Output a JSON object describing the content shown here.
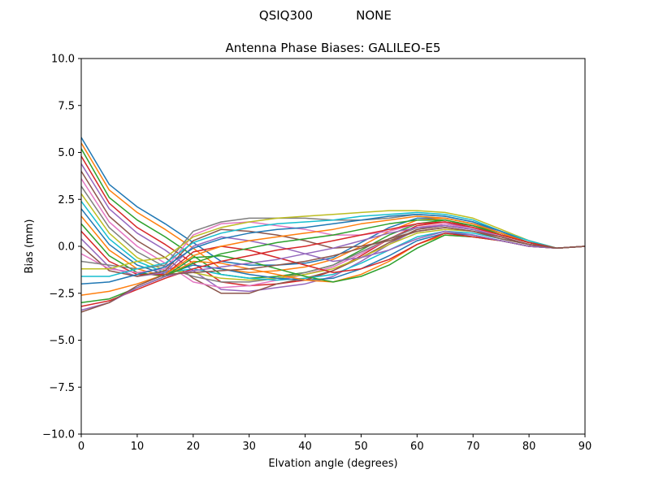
{
  "figure": {
    "suptitle_left": "QSIQ300",
    "suptitle_right": "NONE"
  },
  "chart_data": {
    "type": "line",
    "title": "Antenna Phase Biases: GALILEO-E5",
    "xlabel": "Elvation angle (degrees)",
    "ylabel": "Bias (mm)",
    "xlim": [
      0,
      90
    ],
    "ylim": [
      -10,
      10
    ],
    "xticks": [
      0,
      10,
      20,
      30,
      40,
      50,
      60,
      70,
      80,
      90
    ],
    "yticks": [
      -10.0,
      -7.5,
      -5.0,
      -2.5,
      0.0,
      2.5,
      5.0,
      7.5,
      10.0
    ],
    "xtick_labels": [
      "0",
      "10",
      "20",
      "30",
      "40",
      "50",
      "60",
      "70",
      "80",
      "90"
    ],
    "ytick_labels": [
      "−10.0",
      "−7.5",
      "−5.0",
      "−2.5",
      "0.0",
      "2.5",
      "5.0",
      "7.5",
      "10.0"
    ],
    "grid": false,
    "legend": "none",
    "colors": [
      "#1f77b4",
      "#ff7f0e",
      "#2ca02c",
      "#d62728",
      "#9467bd",
      "#8c564b",
      "#e377c2",
      "#7f7f7f",
      "#bcbd22",
      "#17becf"
    ],
    "x": [
      0,
      5,
      10,
      15,
      20,
      25,
      30,
      35,
      40,
      45,
      50,
      55,
      60,
      65,
      70,
      75,
      80,
      85,
      90
    ],
    "series": [
      {
        "values": [
          5.8,
          3.3,
          2.1,
          1.2,
          0.2,
          -0.8,
          -1.0,
          -1.0,
          -0.9,
          -0.6,
          0.2,
          1.0,
          1.5,
          1.5,
          1.2,
          0.7,
          0.2,
          -0.1,
          0.0
        ]
      },
      {
        "values": [
          5.5,
          3.0,
          1.8,
          0.9,
          -0.1,
          -1.2,
          -1.4,
          -1.3,
          -1.1,
          -0.7,
          0.0,
          0.8,
          1.4,
          1.5,
          1.2,
          0.7,
          0.2,
          -0.1,
          0.0
        ]
      },
      {
        "values": [
          5.2,
          2.6,
          1.4,
          0.5,
          -0.5,
          -1.5,
          -1.7,
          -1.6,
          -1.4,
          -1.0,
          -0.2,
          0.6,
          1.2,
          1.4,
          1.1,
          0.7,
          0.2,
          -0.1,
          0.0
        ]
      },
      {
        "values": [
          4.8,
          2.3,
          1.0,
          0.1,
          -0.9,
          -1.9,
          -2.1,
          -2.0,
          -1.8,
          -1.3,
          -0.5,
          0.4,
          1.1,
          1.3,
          1.1,
          0.6,
          0.2,
          -0.1,
          0.0
        ]
      },
      {
        "values": [
          4.4,
          2.0,
          0.7,
          -0.2,
          -1.3,
          -2.3,
          -2.4,
          -2.2,
          -2.0,
          -1.6,
          -0.8,
          0.1,
          0.9,
          1.2,
          1.0,
          0.6,
          0.2,
          -0.1,
          0.0
        ]
      },
      {
        "values": [
          4.0,
          1.6,
          0.3,
          -0.6,
          -1.7,
          -2.5,
          -2.5,
          -2.0,
          -1.7,
          -1.3,
          -0.6,
          0.2,
          0.9,
          1.1,
          0.9,
          0.5,
          0.1,
          -0.1,
          0.0
        ]
      },
      {
        "values": [
          3.6,
          1.3,
          0.0,
          -0.9,
          -1.9,
          -2.2,
          -2.1,
          -1.8,
          -1.5,
          -1.1,
          -0.4,
          0.4,
          1.0,
          1.2,
          0.9,
          0.5,
          0.1,
          -0.1,
          0.0
        ]
      },
      {
        "values": [
          3.2,
          1.0,
          -0.3,
          -1.1,
          -1.6,
          -1.9,
          -1.9,
          -1.7,
          -1.4,
          -1.0,
          -0.3,
          0.4,
          1.0,
          1.1,
          0.9,
          0.5,
          0.1,
          -0.1,
          0.0
        ]
      },
      {
        "values": [
          2.8,
          0.7,
          -0.6,
          -1.3,
          -1.4,
          -1.7,
          -1.8,
          -1.7,
          -1.5,
          -1.2,
          -0.6,
          0.1,
          0.7,
          0.9,
          0.8,
          0.4,
          0.1,
          -0.1,
          0.0
        ]
      },
      {
        "values": [
          2.4,
          0.4,
          -0.8,
          -1.4,
          -1.2,
          -1.5,
          -1.7,
          -1.8,
          -1.7,
          -1.5,
          -0.9,
          -0.2,
          0.5,
          0.8,
          0.7,
          0.4,
          0.1,
          -0.1,
          0.0
        ]
      },
      {
        "values": [
          2.0,
          0.1,
          -1.0,
          -1.5,
          -1.0,
          -1.2,
          -1.5,
          -1.7,
          -1.8,
          -1.7,
          -1.2,
          -0.5,
          0.3,
          0.7,
          0.6,
          0.3,
          0.0,
          -0.1,
          0.0
        ]
      },
      {
        "values": [
          1.6,
          -0.2,
          -1.2,
          -1.6,
          -0.8,
          -0.9,
          -1.2,
          -1.5,
          -1.8,
          -1.9,
          -1.5,
          -0.8,
          0.1,
          0.6,
          0.5,
          0.3,
          0.0,
          -0.1,
          0.0
        ]
      },
      {
        "values": [
          1.2,
          -0.5,
          -1.4,
          -1.6,
          -0.6,
          -0.5,
          -0.8,
          -1.2,
          -1.6,
          -1.9,
          -1.6,
          -1.0,
          -0.1,
          0.6,
          0.5,
          0.3,
          0.0,
          -0.1,
          0.0
        ]
      },
      {
        "values": [
          0.8,
          -0.8,
          -1.5,
          -1.5,
          -0.3,
          0.0,
          -0.2,
          -0.6,
          -1.0,
          -1.4,
          -1.2,
          -0.7,
          0.1,
          0.7,
          0.5,
          0.3,
          0.0,
          -0.1,
          0.0
        ]
      },
      {
        "values": [
          0.4,
          -1.1,
          -1.6,
          -1.4,
          0.0,
          0.5,
          0.3,
          0.0,
          -0.4,
          -0.8,
          -0.6,
          -0.2,
          0.4,
          0.8,
          0.6,
          0.3,
          0.0,
          -0.1,
          0.0
        ]
      },
      {
        "values": [
          0.0,
          -1.3,
          -1.6,
          -1.3,
          0.3,
          0.9,
          0.8,
          0.6,
          0.3,
          -0.1,
          0.0,
          0.3,
          0.8,
          1.0,
          0.8,
          0.4,
          0.1,
          -0.1,
          0.0
        ]
      },
      {
        "values": [
          -0.4,
          -1.2,
          -1.4,
          -1.2,
          0.6,
          1.2,
          1.3,
          1.1,
          0.9,
          0.6,
          0.6,
          0.8,
          1.2,
          1.3,
          1.0,
          0.5,
          0.1,
          -0.1,
          0.0
        ]
      },
      {
        "values": [
          -0.8,
          -1.0,
          -1.2,
          -1.0,
          0.8,
          1.3,
          1.5,
          1.5,
          1.5,
          1.4,
          1.4,
          1.5,
          1.7,
          1.6,
          1.3,
          0.7,
          0.2,
          -0.1,
          0.0
        ]
      },
      {
        "values": [
          -1.2,
          -1.2,
          -0.8,
          -0.6,
          0.5,
          1.0,
          1.3,
          1.5,
          1.6,
          1.7,
          1.8,
          1.9,
          1.9,
          1.8,
          1.5,
          0.9,
          0.3,
          -0.1,
          0.0
        ]
      },
      {
        "values": [
          -1.6,
          -1.6,
          -1.2,
          -0.9,
          0.2,
          0.7,
          1.0,
          1.2,
          1.3,
          1.4,
          1.6,
          1.7,
          1.8,
          1.7,
          1.4,
          0.8,
          0.3,
          -0.1,
          0.0
        ]
      },
      {
        "values": [
          -2.0,
          -1.9,
          -1.5,
          -1.1,
          -0.1,
          0.4,
          0.7,
          0.9,
          1.0,
          1.2,
          1.4,
          1.6,
          1.7,
          1.6,
          1.3,
          0.8,
          0.2,
          -0.1,
          0.0
        ]
      },
      {
        "values": [
          -2.6,
          -2.4,
          -2.0,
          -1.5,
          -0.5,
          0.0,
          0.3,
          0.5,
          0.7,
          0.9,
          1.2,
          1.4,
          1.6,
          1.5,
          1.2,
          0.7,
          0.2,
          -0.1,
          0.0
        ]
      },
      {
        "values": [
          -3.0,
          -2.8,
          -2.2,
          -1.6,
          -0.9,
          -0.4,
          -0.1,
          0.2,
          0.4,
          0.6,
          0.9,
          1.2,
          1.4,
          1.4,
          1.1,
          0.6,
          0.2,
          -0.1,
          0.0
        ]
      },
      {
        "values": [
          -3.2,
          -2.9,
          -2.3,
          -1.7,
          -1.2,
          -0.8,
          -0.5,
          -0.2,
          0.0,
          0.3,
          0.6,
          0.9,
          1.2,
          1.3,
          1.0,
          0.6,
          0.2,
          -0.1,
          0.0
        ]
      },
      {
        "values": [
          -3.4,
          -3.0,
          -2.2,
          -1.6,
          -1.3,
          -1.1,
          -0.9,
          -0.7,
          -0.4,
          -0.1,
          0.3,
          0.7,
          1.0,
          1.1,
          0.9,
          0.5,
          0.1,
          -0.1,
          0.0
        ]
      },
      {
        "values": [
          -3.5,
          -3.0,
          -2.1,
          -1.5,
          -1.4,
          -1.3,
          -1.2,
          -1.0,
          -0.8,
          -0.5,
          -0.1,
          0.4,
          0.8,
          1.0,
          0.8,
          0.5,
          0.1,
          -0.1,
          0.0
        ]
      }
    ]
  }
}
